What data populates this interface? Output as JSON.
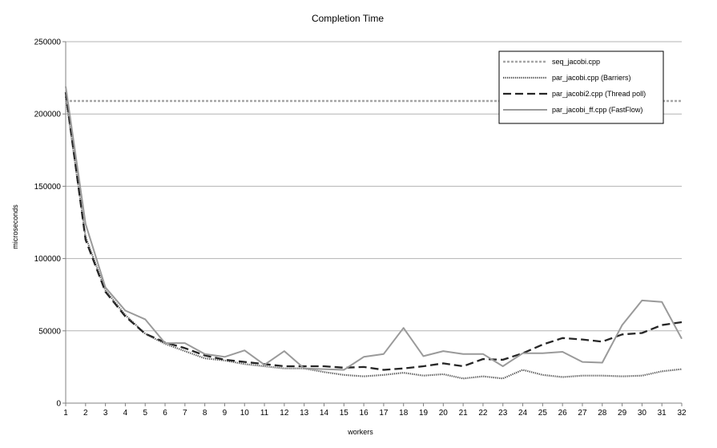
{
  "chart_data": {
    "type": "line",
    "title": "Completion Time",
    "xlabel": "workers",
    "ylabel": "microseconds",
    "ylim": [
      0,
      250000
    ],
    "yticks": [
      0,
      50000,
      100000,
      150000,
      200000,
      250000
    ],
    "x": [
      1,
      2,
      3,
      4,
      5,
      6,
      7,
      8,
      9,
      10,
      11,
      12,
      13,
      14,
      15,
      16,
      17,
      18,
      19,
      20,
      21,
      22,
      23,
      24,
      25,
      26,
      27,
      28,
      29,
      30,
      31,
      32
    ],
    "grid": true,
    "legend_position": "top-right",
    "series": [
      {
        "name": "seq_jacobi.cpp",
        "style": "dotted-thick",
        "color": "#a6a6a6",
        "values": [
          209000,
          209000,
          209000,
          209000,
          209000,
          209000,
          209000,
          209000,
          209000,
          209000,
          209000,
          209000,
          209000,
          209000,
          209000,
          209000,
          209000,
          209000,
          209000,
          209000,
          209000,
          209000,
          209000,
          209000,
          209000,
          209000,
          209000,
          209000,
          209000,
          209000,
          209000,
          209000
        ]
      },
      {
        "name": "par_jacobi.cpp (Barriers)",
        "style": "dotted",
        "color": "#595959",
        "values": [
          212000,
          115000,
          78000,
          61000,
          48000,
          41000,
          36000,
          31000,
          29500,
          27000,
          25500,
          24000,
          24000,
          21500,
          19500,
          18500,
          19500,
          21000,
          19000,
          20000,
          17000,
          18500,
          17000,
          23000,
          19500,
          18000,
          19000,
          19000,
          18500,
          19000,
          22000,
          23500
        ]
      },
      {
        "name": "par_jacobi2.cpp (Thread poll)",
        "style": "dashed",
        "color": "#262626",
        "values": [
          215000,
          113000,
          77000,
          60000,
          48000,
          42000,
          38000,
          33000,
          30000,
          28500,
          27000,
          25500,
          25500,
          25500,
          24500,
          25000,
          23000,
          24000,
          25500,
          27500,
          25500,
          30500,
          30000,
          34500,
          40500,
          45000,
          44000,
          42500,
          47500,
          48500,
          54000,
          56000
        ]
      },
      {
        "name": "par_jacobi_ff.cpp (FastFlow)",
        "style": "solid",
        "color": "#9a9a9a",
        "values": [
          219000,
          124000,
          80000,
          64000,
          58000,
          41500,
          41500,
          34000,
          32000,
          36500,
          26500,
          36000,
          24000,
          23500,
          23000,
          32000,
          34000,
          52000,
          32500,
          36000,
          34000,
          34000,
          25500,
          34500,
          34500,
          35500,
          28500,
          28000,
          54000,
          71000,
          70000,
          44500
        ]
      }
    ]
  }
}
